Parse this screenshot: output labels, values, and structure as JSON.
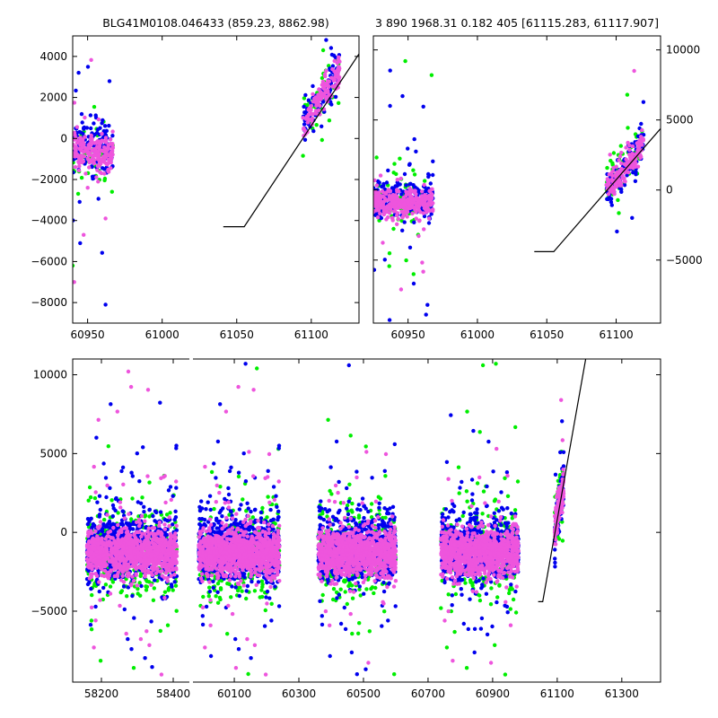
{
  "chart_data": [
    {
      "id": "top_left",
      "type": "scatter",
      "title": "BLG41M0108.046433 (859.23, 8862.98)",
      "xlim": [
        60940,
        61132
      ],
      "ylim": [
        -9000,
        5000
      ],
      "xticks": [
        60950,
        61000,
        61050,
        61100
      ],
      "yticks": [
        4000,
        2000,
        0,
        -2000,
        -4000,
        -6000,
        -8000
      ],
      "ytick_labels": [
        "4000",
        "2000",
        "0",
        "−2000",
        "−4000",
        "−6000",
        "−8000"
      ],
      "y_axis_side": "left",
      "series": [
        {
          "name": "green",
          "color": "#00ee00"
        },
        {
          "name": "blue",
          "color": "#0000ee"
        },
        {
          "name": "magenta",
          "color": "#ee55dd"
        }
      ],
      "clusters": [
        {
          "xr": [
            60940,
            60967
          ],
          "yc": -700,
          "sd": 600,
          "spike": 2600,
          "n": 170
        },
        {
          "xr": [
            61094,
            61119
          ],
          "yline": [
            [
              61094,
              600
            ],
            [
              61119,
              3300
            ]
          ],
          "sd": 500,
          "spike": 900,
          "n": 120
        }
      ],
      "model_line": {
        "x": [
          61041,
          61055,
          61140
        ],
        "y": [
          -4300,
          -4300,
          5000
        ]
      },
      "outliers": [
        {
          "x": 60962,
          "y": -8100,
          "s": "blue"
        },
        {
          "x": 60941,
          "y": -7000,
          "s": "magenta"
        },
        {
          "x": 60940,
          "y": -6200,
          "s": "green"
        },
        {
          "x": 60945,
          "y": -5100,
          "s": "blue"
        },
        {
          "x": 60962,
          "y": -3900,
          "s": "magenta"
        },
        {
          "x": 60944,
          "y": 3200,
          "s": "blue"
        },
        {
          "x": 61110,
          "y": 4800,
          "s": "blue"
        },
        {
          "x": 61108,
          "y": 4300,
          "s": "green"
        }
      ]
    },
    {
      "id": "top_right",
      "type": "scatter",
      "title": "3 890 1968.31 0.182 405 [61115.283, 61117.907]",
      "xlim": [
        60925,
        61132
      ],
      "ylim": [
        -9500,
        11000
      ],
      "xticks": [
        60950,
        61000,
        61050,
        61100
      ],
      "yticks": [
        10000,
        5000,
        0,
        -5000
      ],
      "ytick_labels": [
        "10000",
        "5000",
        "0",
        "−5000"
      ],
      "y_axis_side": "right",
      "series": [
        {
          "name": "green",
          "color": "#00ee00"
        },
        {
          "name": "blue",
          "color": "#0000ee"
        },
        {
          "name": "magenta",
          "color": "#ee55dd"
        }
      ],
      "clusters": [
        {
          "xr": [
            60925,
            60968
          ],
          "yc": -900,
          "sd": 700,
          "spike": 4000,
          "n": 280
        },
        {
          "xr": [
            61093,
            61120
          ],
          "yline": [
            [
              61093,
              0
            ],
            [
              61120,
              3200
            ]
          ],
          "sd": 700,
          "spike": 1800,
          "n": 140
        }
      ],
      "model_line": {
        "x": [
          61041,
          61055,
          61140
        ],
        "y": [
          -4400,
          -4400,
          5300
        ]
      },
      "outliers": [
        {
          "x": 60948,
          "y": 9200,
          "s": "green"
        },
        {
          "x": 60967,
          "y": 8200,
          "s": "green"
        },
        {
          "x": 60946,
          "y": 6700,
          "s": "blue"
        },
        {
          "x": 60937,
          "y": 6000,
          "s": "blue"
        },
        {
          "x": 60964,
          "y": -8200,
          "s": "blue"
        },
        {
          "x": 60963,
          "y": -8900,
          "s": "blue"
        },
        {
          "x": 60945,
          "y": -7100,
          "s": "magenta"
        },
        {
          "x": 60954,
          "y": -6000,
          "s": "green"
        },
        {
          "x": 61113,
          "y": 8500,
          "s": "magenta"
        },
        {
          "x": 61108,
          "y": 6800,
          "s": "green"
        }
      ]
    },
    {
      "id": "bottom",
      "type": "scatter",
      "title": "",
      "broken_x_axis": true,
      "segments": [
        {
          "xlim": [
            58120,
            58445
          ],
          "xticks": [
            58200,
            58400
          ]
        },
        {
          "xlim": [
            59972,
            61420
          ],
          "xticks": [
            60100,
            60300,
            60500,
            60700,
            60900,
            61100,
            61300
          ]
        }
      ],
      "ylim": [
        -9500,
        11000
      ],
      "yticks": [
        10000,
        5000,
        0,
        -5000
      ],
      "ytick_labels": [
        "10000",
        "5000",
        "0",
        "−5000"
      ],
      "y_axis_side": "left",
      "series": [
        {
          "name": "green",
          "color": "#00ee00"
        },
        {
          "name": "blue",
          "color": "#0000ee"
        },
        {
          "name": "magenta",
          "color": "#ee55dd"
        }
      ],
      "clusters": [
        {
          "seg": 0,
          "xr": [
            58160,
            58410
          ],
          "yc": -1300,
          "sd": 1000,
          "spike": 3800,
          "n": 900
        },
        {
          "seg": 1,
          "xr": [
            59990,
            60240
          ],
          "yc": -1300,
          "sd": 1000,
          "spike": 3800,
          "n": 900
        },
        {
          "seg": 1,
          "xr": [
            60360,
            60600
          ],
          "yc": -1300,
          "sd": 1000,
          "spike": 3800,
          "n": 850
        },
        {
          "seg": 1,
          "xr": [
            60740,
            60980
          ],
          "yc": -1300,
          "sd": 1000,
          "spike": 3800,
          "n": 850
        },
        {
          "seg": 1,
          "xr": [
            61092,
            61120
          ],
          "yline": [
            [
              61092,
              0
            ],
            [
              61120,
              3300
            ]
          ],
          "sd": 800,
          "spike": 1800,
          "n": 140
        }
      ],
      "model_line": {
        "seg": 1,
        "x": [
          61041,
          61055,
          61190
        ],
        "y": [
          -4400,
          -4400,
          11200
        ]
      },
      "outliers": [
        {
          "seg": 0,
          "x": 58275,
          "y": 10200,
          "s": "magenta"
        },
        {
          "seg": 1,
          "x": 60135,
          "y": 10700,
          "s": "blue"
        },
        {
          "seg": 1,
          "x": 60170,
          "y": 10400,
          "s": "green"
        },
        {
          "seg": 1,
          "x": 60455,
          "y": 10600,
          "s": "blue"
        },
        {
          "seg": 1,
          "x": 60870,
          "y": 10600,
          "s": "green"
        },
        {
          "seg": 1,
          "x": 60910,
          "y": 10700,
          "s": "green"
        },
        {
          "seg": 1,
          "x": 61112,
          "y": 8400,
          "s": "magenta"
        },
        {
          "seg": 0,
          "x": 58290,
          "y": -8600,
          "s": "green"
        },
        {
          "seg": 1,
          "x": 60105,
          "y": -8600,
          "s": "magenta"
        },
        {
          "seg": 1,
          "x": 60480,
          "y": -9000,
          "s": "blue"
        },
        {
          "seg": 1,
          "x": 60820,
          "y": -8600,
          "s": "green"
        },
        {
          "seg": 1,
          "x": 60595,
          "y": -9000,
          "s": "green"
        }
      ]
    }
  ]
}
